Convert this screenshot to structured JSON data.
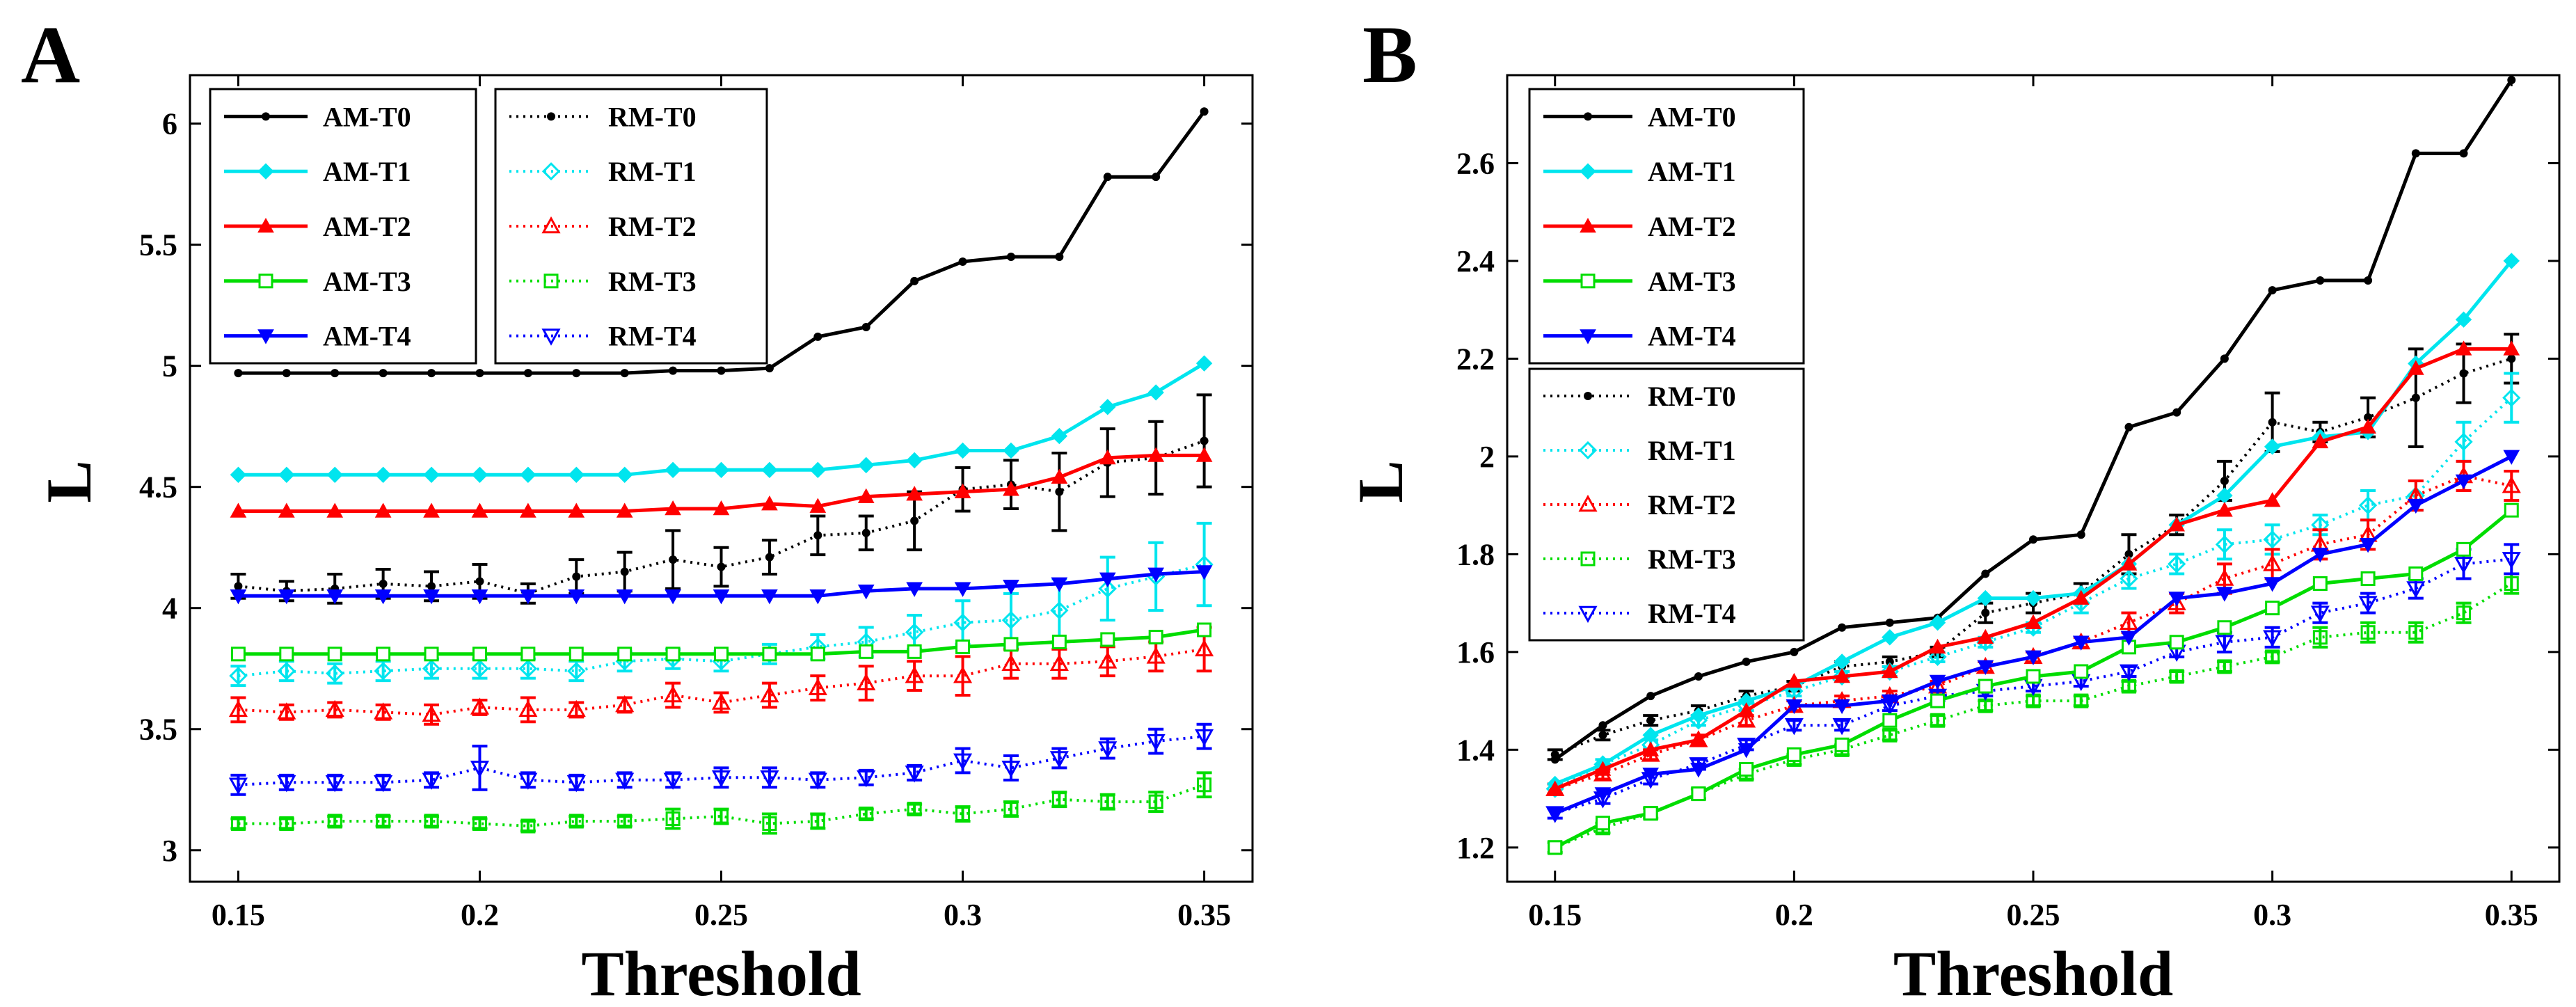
{
  "chart_data": [
    {
      "panel": "A",
      "type": "line",
      "xlabel": "Threshold",
      "ylabel": "L",
      "xlim": [
        0.14,
        0.36
      ],
      "ylim": [
        2.87,
        6.2
      ],
      "xticks": [
        0.15,
        0.2,
        0.25,
        0.3,
        0.35
      ],
      "xtick_labels": [
        "0.15",
        "0.2",
        "0.25",
        "0.3",
        "0.35"
      ],
      "yticks": [
        3,
        3.5,
        4,
        4.5,
        5,
        5.5,
        6
      ],
      "ytick_labels": [
        "3",
        "3.5",
        "4",
        "4.5",
        "5",
        "5.5",
        "6"
      ],
      "x": [
        0.15,
        0.16,
        0.17,
        0.18,
        0.19,
        0.2,
        0.21,
        0.22,
        0.23,
        0.24,
        0.25,
        0.26,
        0.27,
        0.28,
        0.29,
        0.3,
        0.31,
        0.32,
        0.33,
        0.34,
        0.35
      ],
      "legend_position": "top-left",
      "series": [
        {
          "name": "AM-T0",
          "color": "#000000",
          "style": "solid",
          "marker": "dot",
          "values": [
            4.97,
            4.97,
            4.97,
            4.97,
            4.97,
            4.97,
            4.97,
            4.97,
            4.97,
            4.98,
            4.98,
            4.99,
            5.12,
            5.16,
            5.35,
            5.43,
            5.45,
            5.45,
            5.78,
            5.78,
            6.05
          ]
        },
        {
          "name": "AM-T1",
          "color": "#00e5ee",
          "style": "solid",
          "marker": "diamond",
          "values": [
            4.55,
            4.55,
            4.55,
            4.55,
            4.55,
            4.55,
            4.55,
            4.55,
            4.55,
            4.57,
            4.57,
            4.57,
            4.57,
            4.59,
            4.61,
            4.65,
            4.65,
            4.71,
            4.83,
            4.89,
            5.01
          ]
        },
        {
          "name": "AM-T2",
          "color": "#ff0000",
          "style": "solid",
          "marker": "triangle-up",
          "values": [
            4.4,
            4.4,
            4.4,
            4.4,
            4.4,
            4.4,
            4.4,
            4.4,
            4.4,
            4.41,
            4.41,
            4.43,
            4.42,
            4.46,
            4.47,
            4.48,
            4.49,
            4.54,
            4.62,
            4.63,
            4.63
          ]
        },
        {
          "name": "AM-T3",
          "color": "#00dd00",
          "style": "solid",
          "marker": "square",
          "values": [
            3.81,
            3.81,
            3.81,
            3.81,
            3.81,
            3.81,
            3.81,
            3.81,
            3.81,
            3.81,
            3.81,
            3.81,
            3.81,
            3.82,
            3.82,
            3.84,
            3.85,
            3.86,
            3.87,
            3.88,
            3.91
          ]
        },
        {
          "name": "AM-T4",
          "color": "#0000ff",
          "style": "solid",
          "marker": "triangle-down",
          "values": [
            4.05,
            4.05,
            4.05,
            4.05,
            4.05,
            4.05,
            4.05,
            4.05,
            4.05,
            4.05,
            4.05,
            4.05,
            4.05,
            4.07,
            4.08,
            4.08,
            4.09,
            4.1,
            4.12,
            4.14,
            4.15
          ]
        },
        {
          "name": "RM-T0",
          "color": "#000000",
          "style": "dotted",
          "marker": "dot",
          "errorbar_color": "#000000",
          "values": [
            4.09,
            4.07,
            4.08,
            4.1,
            4.09,
            4.11,
            4.06,
            4.13,
            4.15,
            4.2,
            4.17,
            4.21,
            4.3,
            4.31,
            4.36,
            4.49,
            4.51,
            4.48,
            4.6,
            4.62,
            4.69
          ],
          "errors": [
            0.05,
            0.04,
            0.06,
            0.06,
            0.06,
            0.07,
            0.04,
            0.07,
            0.08,
            0.12,
            0.08,
            0.07,
            0.08,
            0.07,
            0.12,
            0.09,
            0.1,
            0.16,
            0.14,
            0.15,
            0.19
          ]
        },
        {
          "name": "RM-T1",
          "color": "#00e5ee",
          "style": "dotted",
          "marker": "diamond-open",
          "errorbar_color": "#00e5ee",
          "values": [
            3.72,
            3.74,
            3.73,
            3.74,
            3.75,
            3.75,
            3.75,
            3.74,
            3.78,
            3.79,
            3.78,
            3.81,
            3.84,
            3.86,
            3.9,
            3.94,
            3.95,
            3.99,
            4.08,
            4.13,
            4.18
          ],
          "errors": [
            0.04,
            0.04,
            0.04,
            0.04,
            0.04,
            0.04,
            0.04,
            0.04,
            0.04,
            0.04,
            0.04,
            0.04,
            0.05,
            0.06,
            0.07,
            0.09,
            0.11,
            0.13,
            0.13,
            0.14,
            0.17
          ]
        },
        {
          "name": "RM-T2",
          "color": "#ff0000",
          "style": "dotted",
          "marker": "triangle-open",
          "errorbar_color": "#ff0000",
          "values": [
            3.58,
            3.57,
            3.58,
            3.57,
            3.56,
            3.59,
            3.58,
            3.58,
            3.6,
            3.64,
            3.61,
            3.64,
            3.67,
            3.69,
            3.72,
            3.72,
            3.77,
            3.77,
            3.78,
            3.8,
            3.83
          ],
          "errors": [
            0.05,
            0.03,
            0.03,
            0.03,
            0.04,
            0.03,
            0.05,
            0.03,
            0.03,
            0.05,
            0.04,
            0.05,
            0.05,
            0.07,
            0.06,
            0.08,
            0.06,
            0.06,
            0.06,
            0.06,
            0.09
          ]
        },
        {
          "name": "RM-T3",
          "color": "#00dd00",
          "style": "dotted",
          "marker": "square-open",
          "errorbar_color": "#00dd00",
          "values": [
            3.11,
            3.11,
            3.12,
            3.12,
            3.12,
            3.11,
            3.1,
            3.12,
            3.12,
            3.13,
            3.14,
            3.11,
            3.12,
            3.15,
            3.17,
            3.15,
            3.17,
            3.21,
            3.2,
            3.2,
            3.27
          ],
          "errors": [
            0.02,
            0.02,
            0.02,
            0.02,
            0.02,
            0.02,
            0.02,
            0.02,
            0.02,
            0.04,
            0.03,
            0.04,
            0.03,
            0.02,
            0.02,
            0.03,
            0.03,
            0.03,
            0.03,
            0.04,
            0.05
          ]
        },
        {
          "name": "RM-T4",
          "color": "#0000ff",
          "style": "dotted",
          "marker": "triangle-down-open",
          "errorbar_color": "#0000ff",
          "values": [
            3.27,
            3.28,
            3.28,
            3.28,
            3.29,
            3.34,
            3.29,
            3.28,
            3.29,
            3.29,
            3.3,
            3.3,
            3.29,
            3.3,
            3.32,
            3.37,
            3.34,
            3.38,
            3.42,
            3.45,
            3.47
          ],
          "errors": [
            0.04,
            0.03,
            0.03,
            0.03,
            0.03,
            0.09,
            0.03,
            0.03,
            0.03,
            0.03,
            0.04,
            0.04,
            0.03,
            0.03,
            0.03,
            0.05,
            0.05,
            0.04,
            0.04,
            0.05,
            0.05
          ]
        }
      ]
    },
    {
      "panel": "B",
      "type": "line",
      "xlabel": "Threshold",
      "ylabel": "L",
      "xlim": [
        0.14,
        0.36
      ],
      "ylim": [
        1.13,
        2.78
      ],
      "xticks": [
        0.15,
        0.2,
        0.25,
        0.3,
        0.35
      ],
      "xtick_labels": [
        "0.15",
        "0.2",
        "0.25",
        "0.3",
        "0.35"
      ],
      "yticks": [
        1.2,
        1.4,
        1.6,
        1.8,
        2,
        2.2,
        2.4,
        2.6
      ],
      "ytick_labels": [
        "1.2",
        "1.4",
        "1.6",
        "1.8",
        "2",
        "2.2",
        "2.4",
        "2.6"
      ],
      "x": [
        0.15,
        0.16,
        0.17,
        0.18,
        0.19,
        0.2,
        0.21,
        0.22,
        0.23,
        0.24,
        0.25,
        0.26,
        0.27,
        0.28,
        0.29,
        0.3,
        0.31,
        0.32,
        0.33,
        0.34,
        0.35
      ],
      "legend_position": "top-left",
      "series": [
        {
          "name": "AM-T0",
          "color": "#000000",
          "style": "solid",
          "marker": "dot",
          "values": [
            1.38,
            1.45,
            1.51,
            1.55,
            1.58,
            1.6,
            1.65,
            1.66,
            1.67,
            1.76,
            1.83,
            1.84,
            2.06,
            2.09,
            2.2,
            2.34,
            2.36,
            2.36,
            2.62,
            2.62,
            2.77
          ]
        },
        {
          "name": "AM-T1",
          "color": "#00e5ee",
          "style": "solid",
          "marker": "diamond",
          "values": [
            1.33,
            1.37,
            1.43,
            1.47,
            1.5,
            1.53,
            1.58,
            1.63,
            1.66,
            1.71,
            1.71,
            1.72,
            1.78,
            1.86,
            1.92,
            2.02,
            2.04,
            2.05,
            2.19,
            2.28,
            2.4
          ]
        },
        {
          "name": "AM-T2",
          "color": "#ff0000",
          "style": "solid",
          "marker": "triangle-up",
          "values": [
            1.32,
            1.36,
            1.4,
            1.42,
            1.48,
            1.54,
            1.55,
            1.56,
            1.61,
            1.63,
            1.66,
            1.71,
            1.78,
            1.86,
            1.89,
            1.91,
            2.03,
            2.06,
            2.18,
            2.22,
            2.22
          ]
        },
        {
          "name": "AM-T3",
          "color": "#00dd00",
          "style": "solid",
          "marker": "square",
          "values": [
            1.2,
            1.25,
            1.27,
            1.31,
            1.36,
            1.39,
            1.41,
            1.46,
            1.5,
            1.53,
            1.55,
            1.56,
            1.61,
            1.62,
            1.65,
            1.69,
            1.74,
            1.75,
            1.76,
            1.81,
            1.89
          ]
        },
        {
          "name": "AM-T4",
          "color": "#0000ff",
          "style": "solid",
          "marker": "triangle-down",
          "values": [
            1.27,
            1.31,
            1.35,
            1.36,
            1.4,
            1.49,
            1.49,
            1.5,
            1.54,
            1.57,
            1.59,
            1.62,
            1.63,
            1.71,
            1.72,
            1.74,
            1.8,
            1.82,
            1.9,
            1.95,
            2.0
          ]
        },
        {
          "name": "RM-T0",
          "color": "#000000",
          "style": "dotted",
          "marker": "dot",
          "errorbar_color": "#000000",
          "values": [
            1.39,
            1.43,
            1.46,
            1.48,
            1.51,
            1.53,
            1.57,
            1.58,
            1.6,
            1.68,
            1.7,
            1.72,
            1.8,
            1.86,
            1.95,
            2.07,
            2.05,
            2.08,
            2.12,
            2.17,
            2.2
          ],
          "errors": [
            0.01,
            0.01,
            0.01,
            0.01,
            0.01,
            0.01,
            0.01,
            0.01,
            0.01,
            0.02,
            0.02,
            0.02,
            0.04,
            0.02,
            0.04,
            0.06,
            0.02,
            0.04,
            0.1,
            0.06,
            0.05
          ]
        },
        {
          "name": "RM-T1",
          "color": "#00e5ee",
          "style": "dotted",
          "marker": "diamond-open",
          "errorbar_color": "#00e5ee",
          "values": [
            1.32,
            1.37,
            1.41,
            1.46,
            1.49,
            1.52,
            1.55,
            1.56,
            1.59,
            1.62,
            1.65,
            1.7,
            1.75,
            1.78,
            1.82,
            1.83,
            1.86,
            1.9,
            1.92,
            2.03,
            2.12
          ],
          "errors": [
            0.01,
            0.01,
            0.01,
            0.01,
            0.01,
            0.01,
            0.01,
            0.01,
            0.01,
            0.01,
            0.01,
            0.02,
            0.02,
            0.02,
            0.03,
            0.03,
            0.02,
            0.03,
            0.03,
            0.04,
            0.05
          ]
        },
        {
          "name": "RM-T2",
          "color": "#ff0000",
          "style": "dotted",
          "marker": "triangle-open",
          "errorbar_color": "#ff0000",
          "values": [
            1.32,
            1.35,
            1.39,
            1.42,
            1.46,
            1.49,
            1.5,
            1.51,
            1.53,
            1.57,
            1.59,
            1.62,
            1.66,
            1.7,
            1.75,
            1.78,
            1.82,
            1.84,
            1.92,
            1.96,
            1.94
          ],
          "errors": [
            0.01,
            0.01,
            0.01,
            0.01,
            0.01,
            0.01,
            0.01,
            0.01,
            0.01,
            0.01,
            0.01,
            0.01,
            0.02,
            0.02,
            0.03,
            0.03,
            0.03,
            0.03,
            0.03,
            0.03,
            0.03
          ]
        },
        {
          "name": "RM-T3",
          "color": "#00dd00",
          "style": "dotted",
          "marker": "square-open",
          "errorbar_color": "#00dd00",
          "values": [
            1.2,
            1.24,
            1.27,
            1.31,
            1.35,
            1.38,
            1.4,
            1.43,
            1.46,
            1.49,
            1.5,
            1.5,
            1.53,
            1.55,
            1.57,
            1.59,
            1.63,
            1.64,
            1.64,
            1.68,
            1.74
          ],
          "errors": [
            0.01,
            0.01,
            0.01,
            0.01,
            0.01,
            0.01,
            0.01,
            0.01,
            0.01,
            0.01,
            0.01,
            0.01,
            0.01,
            0.01,
            0.01,
            0.01,
            0.02,
            0.02,
            0.02,
            0.02,
            0.02
          ]
        },
        {
          "name": "RM-T4",
          "color": "#0000ff",
          "style": "dotted",
          "marker": "triangle-down-open",
          "errorbar_color": "#0000ff",
          "values": [
            1.27,
            1.3,
            1.34,
            1.37,
            1.41,
            1.45,
            1.45,
            1.49,
            1.51,
            1.52,
            1.53,
            1.54,
            1.56,
            1.6,
            1.62,
            1.63,
            1.68,
            1.7,
            1.73,
            1.78,
            1.79
          ],
          "errors": [
            0.01,
            0.01,
            0.01,
            0.01,
            0.01,
            0.01,
            0.01,
            0.01,
            0.01,
            0.01,
            0.01,
            0.01,
            0.01,
            0.01,
            0.02,
            0.02,
            0.02,
            0.02,
            0.02,
            0.03,
            0.03
          ]
        }
      ]
    }
  ]
}
